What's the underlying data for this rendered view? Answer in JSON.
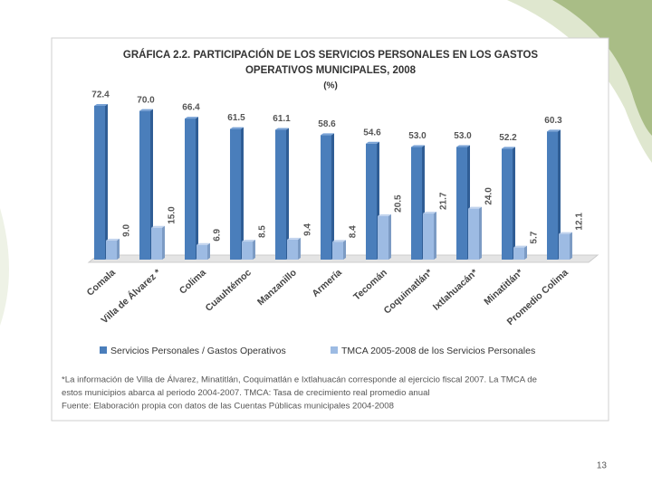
{
  "chart_data": {
    "type": "bar",
    "title": [
      "GRÁFICA 2.2. PARTICIPACIÓN  DE LOS SERVICIOS PERSONALES EN LOS GASTOS",
      "OPERATIVOS MUNICIPALES, 2008"
    ],
    "subtitle": "(%)",
    "categories": [
      "Comala",
      "Villa de Álvarez *",
      "Colima",
      "Cuauhtémoc",
      "Manzanillo",
      "Armería",
      "Tecomán",
      "Coquimatlán*",
      "Ixtlahuacán*",
      "Minatitlán*",
      "Promedio Colima"
    ],
    "series": [
      {
        "name": "Servicios Personales /  Gastos Operativos",
        "color": "#4a7ebb",
        "values": [
          72.4,
          70.0,
          66.4,
          61.5,
          61.1,
          58.6,
          54.6,
          53.0,
          53.0,
          52.2,
          60.3
        ],
        "value_labels": [
          "72.4",
          "70.0",
          "66.4",
          "61.5",
          "61.1",
          "58.6",
          "54.6",
          "53.0",
          "53.0",
          "52.2",
          "60.3"
        ]
      },
      {
        "name": "TMCA 2005-2008 de los Servicios Personales",
        "color": "#9dbbe3",
        "values": [
          9.0,
          15.0,
          6.9,
          8.5,
          9.4,
          8.4,
          20.5,
          21.7,
          24.0,
          5.7,
          12.1
        ],
        "value_labels": [
          "9.0",
          "15.0",
          "6.9",
          "8.5",
          "9.4",
          "8.4",
          "20.5",
          "21.7",
          "24.0",
          "5.7",
          "12.1"
        ]
      }
    ],
    "notes": [
      "*La información de Villa de Álvarez, Minatitlán, Coquimatlán e Ixtlahuacán corresponde al ejercicio fiscal 2007. La TMCA de",
      "estos municipios abarca al periodo 2004-2007. TMCA: Tasa de crecimiento real promedio anual",
      "Fuente: Elaboración propia con datos de las Cuentas Públicas municipales 2004-2008"
    ]
  },
  "page_number": "13"
}
